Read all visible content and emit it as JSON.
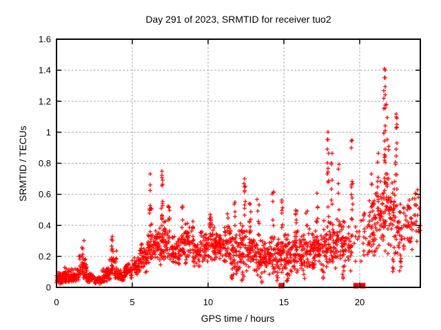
{
  "window": {
    "background": "#ffffff"
  },
  "chart_data": {
    "type": "scatter",
    "title": "Day 291 of 2023, SRMTID for receiver tuo2",
    "xlabel": "GPS time / hours",
    "ylabel": "SRMTID / TECUs",
    "xlim": [
      0,
      24
    ],
    "ylim": [
      0,
      1.6
    ],
    "xticks": [
      0,
      5,
      10,
      15,
      20
    ],
    "xtick_labels": [
      "0",
      "5",
      "10",
      "15",
      "20"
    ],
    "yticks": [
      0,
      0.2,
      0.4,
      0.6,
      0.8,
      1,
      1.2,
      1.4,
      1.6
    ],
    "ytick_labels": [
      "0",
      "0.2",
      "0.4",
      "0.6",
      "0.8",
      "1",
      "1.2",
      "1.4",
      "1.6"
    ],
    "grid": "dashed",
    "legend": "none",
    "marker": {
      "glyph": "plus",
      "size": 7,
      "stroke_width": 1.3
    },
    "colors": {
      "marker": "#ff0000",
      "grid": "#9e9e9e",
      "border": "#000000",
      "background": "#ffffff",
      "text": "#000000"
    },
    "baseline_squares": {
      "hours": [
        14.83,
        19.76,
        20.2
      ],
      "value": 0,
      "size": 8,
      "color": "#ff0000"
    },
    "seed": 20231018,
    "density_bands": [
      [
        0,
        0.5,
        0.02,
        0.1,
        50
      ],
      [
        0.5,
        1,
        0.02,
        0.13,
        50
      ],
      [
        1,
        1.5,
        0.03,
        0.12,
        46
      ],
      [
        1.5,
        2,
        0.04,
        0.22,
        46
      ],
      [
        2,
        2.5,
        0.02,
        0.1,
        44
      ],
      [
        2.5,
        3,
        0.02,
        0.08,
        40
      ],
      [
        3,
        3.5,
        0.03,
        0.14,
        40
      ],
      [
        3.5,
        4,
        0.04,
        0.24,
        42
      ],
      [
        4,
        4.5,
        0.03,
        0.12,
        42
      ],
      [
        4.5,
        5,
        0.05,
        0.16,
        42
      ],
      [
        5,
        5.5,
        0.07,
        0.2,
        42
      ],
      [
        5.5,
        6,
        0.08,
        0.3,
        42
      ],
      [
        6,
        6.5,
        0.1,
        0.4,
        44
      ],
      [
        6.5,
        7,
        0.12,
        0.42,
        44
      ],
      [
        7,
        7.5,
        0.15,
        0.45,
        42
      ],
      [
        7.5,
        8,
        0.12,
        0.36,
        40
      ],
      [
        8,
        8.5,
        0.14,
        0.36,
        40
      ],
      [
        8.5,
        9,
        0.15,
        0.42,
        40
      ],
      [
        9,
        9.5,
        0.12,
        0.32,
        40
      ],
      [
        9.5,
        10,
        0.13,
        0.38,
        40
      ],
      [
        10,
        10.5,
        0.15,
        0.42,
        42
      ],
      [
        10.5,
        11,
        0.14,
        0.36,
        40
      ],
      [
        11,
        11.5,
        0.15,
        0.4,
        40
      ],
      [
        11.5,
        12,
        0.06,
        0.38,
        40
      ],
      [
        12,
        12.5,
        0.08,
        0.42,
        42
      ],
      [
        12.5,
        13,
        0.08,
        0.42,
        40
      ],
      [
        13,
        13.5,
        0.05,
        0.36,
        40
      ],
      [
        13.5,
        14,
        0.06,
        0.32,
        40
      ],
      [
        14,
        14.5,
        0.08,
        0.36,
        40
      ],
      [
        14.5,
        15,
        0.07,
        0.38,
        40
      ],
      [
        15,
        15.5,
        0.05,
        0.36,
        40
      ],
      [
        15.5,
        16,
        0.08,
        0.4,
        40
      ],
      [
        16,
        16.5,
        0.07,
        0.36,
        40
      ],
      [
        16.5,
        17,
        0.1,
        0.4,
        40
      ],
      [
        17,
        17.5,
        0.1,
        0.42,
        40
      ],
      [
        17.5,
        18,
        0.1,
        0.46,
        40
      ],
      [
        18,
        18.5,
        0.1,
        0.5,
        40
      ],
      [
        18.5,
        19,
        0.1,
        0.5,
        38
      ],
      [
        19,
        19.5,
        0.08,
        0.45,
        34
      ],
      [
        19.5,
        20,
        0.1,
        0.4,
        8
      ],
      [
        20,
        20.5,
        0.12,
        0.5,
        10
      ],
      [
        20.5,
        21,
        0.15,
        0.6,
        36
      ],
      [
        21,
        21.5,
        0.18,
        0.7,
        40
      ],
      [
        21.5,
        22,
        0.2,
        0.8,
        46
      ],
      [
        22,
        22.5,
        0.18,
        0.75,
        42
      ],
      [
        22.5,
        23,
        0.12,
        0.6,
        30
      ],
      [
        23,
        23.5,
        0.2,
        0.6,
        26
      ],
      [
        23.5,
        24,
        0.28,
        0.62,
        18
      ]
    ],
    "spike_columns": [
      [
        1.75,
        0.18,
        0.31,
        5
      ],
      [
        3.65,
        0.2,
        0.34,
        6
      ],
      [
        6.2,
        0.38,
        0.73,
        11
      ],
      [
        6.95,
        0.35,
        0.75,
        15
      ],
      [
        7.4,
        0.4,
        0.55,
        6
      ],
      [
        8.3,
        0.38,
        0.55,
        6
      ],
      [
        9.0,
        0.36,
        0.46,
        4
      ],
      [
        10.15,
        0.38,
        0.53,
        7
      ],
      [
        11.3,
        0.38,
        0.5,
        4
      ],
      [
        11.75,
        0.38,
        0.6,
        5
      ],
      [
        12.4,
        0.44,
        0.71,
        9
      ],
      [
        12.75,
        0.4,
        0.57,
        6
      ],
      [
        13.3,
        0.4,
        0.57,
        5
      ],
      [
        14.3,
        0.38,
        0.62,
        6
      ],
      [
        14.9,
        0.38,
        0.62,
        7
      ],
      [
        15.8,
        0.38,
        0.57,
        6
      ],
      [
        16.5,
        0.36,
        0.5,
        4
      ],
      [
        17.2,
        0.4,
        0.62,
        6
      ],
      [
        17.9,
        0.45,
        1.0,
        11
      ],
      [
        18.15,
        0.5,
        0.88,
        7
      ],
      [
        18.6,
        0.45,
        0.8,
        6
      ],
      [
        19.5,
        0.38,
        0.96,
        13
      ],
      [
        20.8,
        0.48,
        0.76,
        7
      ],
      [
        21.2,
        0.55,
        0.88,
        7
      ],
      [
        21.65,
        0.78,
        1.42,
        17
      ],
      [
        21.85,
        0.65,
        1.1,
        10
      ],
      [
        22.4,
        0.72,
        1.12,
        11
      ],
      [
        23.7,
        0.42,
        0.64,
        5
      ],
      [
        11.6,
        0.03,
        0.12,
        5
      ],
      [
        12.3,
        0.02,
        0.1,
        5
      ],
      [
        13.5,
        0.03,
        0.1,
        4
      ],
      [
        14.6,
        0.04,
        0.1,
        4
      ],
      [
        15.2,
        0.04,
        0.12,
        6
      ],
      [
        16.3,
        0.05,
        0.12,
        4
      ],
      [
        17.6,
        0.05,
        0.12,
        4
      ],
      [
        18.9,
        0.05,
        0.12,
        4
      ],
      [
        20.3,
        0.15,
        0.5,
        5
      ],
      [
        22.2,
        0.08,
        0.18,
        5
      ],
      [
        22.7,
        0.1,
        0.2,
        5
      ]
    ],
    "outlier_points": [
      [
        1.8,
        0.3
      ],
      [
        3.7,
        0.33
      ],
      [
        6.2,
        0.73
      ],
      [
        6.95,
        0.75
      ],
      [
        12.4,
        0.7
      ],
      [
        17.9,
        1.0
      ],
      [
        19.5,
        0.95
      ],
      [
        21.63,
        1.41
      ],
      [
        21.68,
        1.4
      ],
      [
        21.7,
        1.35
      ],
      [
        21.6,
        1.22
      ],
      [
        21.75,
        1.18
      ],
      [
        22.4,
        1.1
      ],
      [
        22.45,
        1.05
      ],
      [
        23.8,
        0.63
      ]
    ]
  }
}
